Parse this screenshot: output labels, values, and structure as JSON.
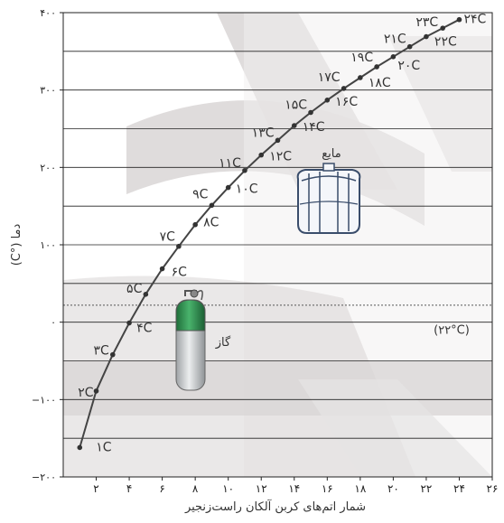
{
  "chart_data": {
    "type": "line",
    "xlabel": "شمار اتم‌های کربن آلکان راست‌زنجیر",
    "ylabel": "دما (°C)",
    "xlim": [
      0,
      26
    ],
    "ylim": [
      -200,
      400
    ],
    "x_ticks": [
      {
        "v": 2,
        "label": "۲"
      },
      {
        "v": 4,
        "label": "۴"
      },
      {
        "v": 6,
        "label": "۶"
      },
      {
        "v": 8,
        "label": "۸"
      },
      {
        "v": 10,
        "label": "۱۰"
      },
      {
        "v": 12,
        "label": "۱۲"
      },
      {
        "v": 14,
        "label": "۱۴"
      },
      {
        "v": 16,
        "label": "۱۶"
      },
      {
        "v": 18,
        "label": "۱۸"
      },
      {
        "v": 20,
        "label": "۲۰"
      },
      {
        "v": 22,
        "label": "۲۲"
      },
      {
        "v": 24,
        "label": "۲۴"
      },
      {
        "v": 26,
        "label": "۲۶"
      }
    ],
    "y_ticks": [
      {
        "v": -200,
        "label": "−۲۰۰"
      },
      {
        "v": -100,
        "label": "−۱۰۰"
      },
      {
        "v": 0,
        "label": "۰"
      },
      {
        "v": 100,
        "label": "۱۰۰"
      },
      {
        "v": 200,
        "label": "۲۰۰"
      },
      {
        "v": 300,
        "label": "۳۰۰"
      },
      {
        "v": 400,
        "label": "۴۰۰"
      }
    ],
    "grid_y_values": [
      -150,
      -100,
      -50,
      0,
      50,
      100,
      150,
      200,
      250,
      300,
      350
    ],
    "reference_line": {
      "y": 22,
      "label": "(۲۲°C)"
    },
    "region_labels": {
      "liquid": "مایع",
      "gas": "گاز"
    },
    "series": [
      {
        "points": [
          {
            "x": 1,
            "y": -162,
            "label": "۱C"
          },
          {
            "x": 2,
            "y": -89,
            "label": "۲C"
          },
          {
            "x": 3,
            "y": -42,
            "label": "۳C"
          },
          {
            "x": 4,
            "y": -1,
            "label": "۴C"
          },
          {
            "x": 5,
            "y": 36,
            "label": "۵C"
          },
          {
            "x": 6,
            "y": 69,
            "label": "۶C"
          },
          {
            "x": 7,
            "y": 98,
            "label": "۷C"
          },
          {
            "x": 8,
            "y": 126,
            "label": "۸C"
          },
          {
            "x": 9,
            "y": 151,
            "label": "۹C"
          },
          {
            "x": 10,
            "y": 174,
            "label": "۱۰C"
          },
          {
            "x": 11,
            "y": 196,
            "label": "۱۱C"
          },
          {
            "x": 12,
            "y": 216,
            "label": "۱۲C"
          },
          {
            "x": 13,
            "y": 235,
            "label": "۱۳C"
          },
          {
            "x": 14,
            "y": 254,
            "label": "۱۴C"
          },
          {
            "x": 15,
            "y": 271,
            "label": "۱۵C"
          },
          {
            "x": 16,
            "y": 287,
            "label": "۱۶C"
          },
          {
            "x": 17,
            "y": 302,
            "label": "۱۷C"
          },
          {
            "x": 18,
            "y": 316,
            "label": "۱۸C"
          },
          {
            "x": 19,
            "y": 330,
            "label": "۱۹C"
          },
          {
            "x": 20,
            "y": 343,
            "label": "۲۰C"
          },
          {
            "x": 21,
            "y": 356,
            "label": "۲۱C"
          },
          {
            "x": 22,
            "y": 369,
            "label": "۲۲C"
          },
          {
            "x": 23,
            "y": 380,
            "label": "۲۳C"
          },
          {
            "x": 24,
            "y": 391,
            "label": "۲۴C"
          }
        ]
      }
    ]
  },
  "colors": {
    "curve": "#444444",
    "grid": "#222222",
    "shade": "#d9d6d6",
    "plot_bg": "#ffffff",
    "tank": "#3a4d6b",
    "cylinder_top": "#2e8b4f",
    "cylinder_body": "#bfc2c4"
  }
}
